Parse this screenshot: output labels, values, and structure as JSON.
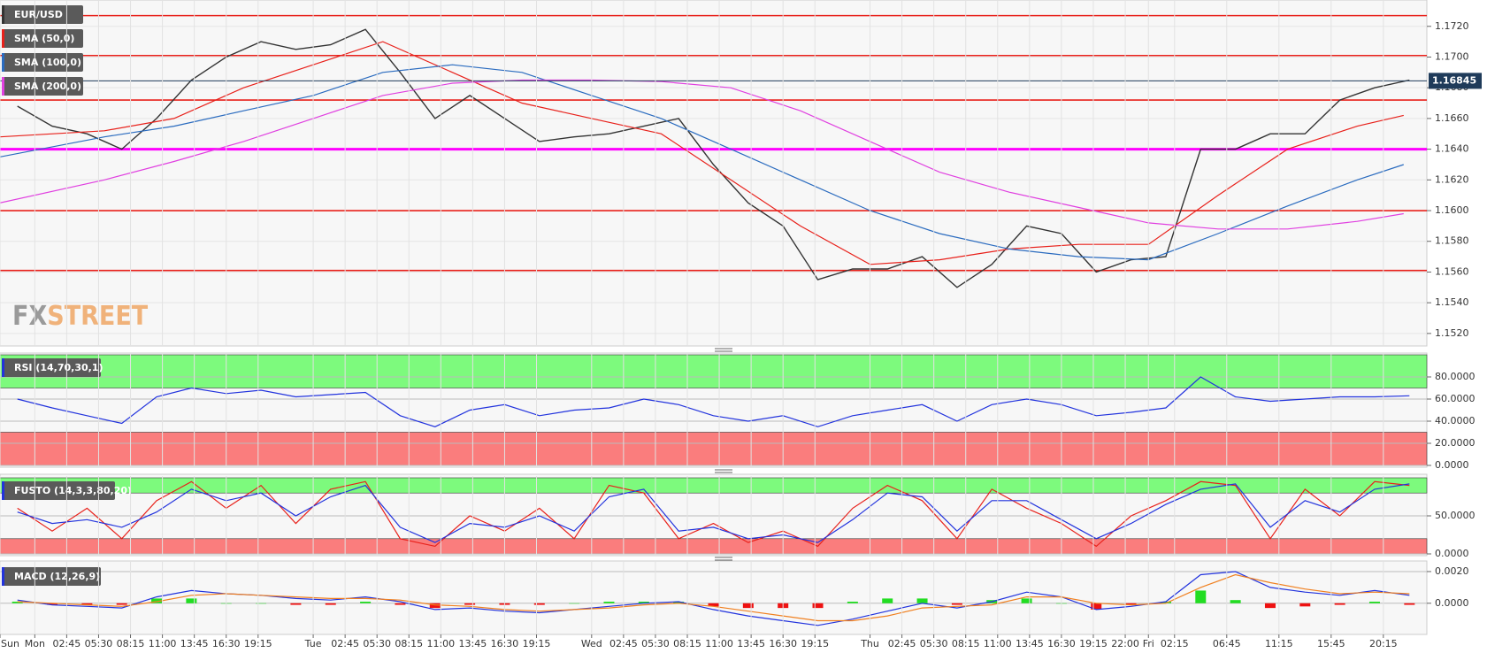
{
  "chart_data": [
    {
      "type": "line",
      "watermark": [
        "FX",
        "STREET"
      ],
      "ylim": [
        1.1513,
        1.1736
      ],
      "yticks": [
        {
          "value": 1.152,
          "label": "1.1520"
        },
        {
          "value": 1.154,
          "label": "1.1540"
        },
        {
          "value": 1.156,
          "label": "1.1560"
        },
        {
          "value": 1.158,
          "label": "1.1580"
        },
        {
          "value": 1.16,
          "label": "1.1600"
        },
        {
          "value": 1.162,
          "label": "1.1620"
        },
        {
          "value": 1.164,
          "label": "1.1640"
        },
        {
          "value": 1.166,
          "label": "1.1660"
        },
        {
          "value": 1.168,
          "label": "1.1680"
        },
        {
          "value": 1.17,
          "label": "1.1700"
        },
        {
          "value": 1.172,
          "label": "1.1720"
        }
      ],
      "xlim": [
        -3,
        120
      ],
      "last_price": 1.16845,
      "hlines": [
        {
          "value": 1.1727,
          "color": "#e8211b"
        },
        {
          "value": 1.1701,
          "color": "#e8211b"
        },
        {
          "value": 1.1672,
          "color": "#e8211b"
        },
        {
          "value": 1.164,
          "color": "#ff00ff"
        },
        {
          "value": 1.16,
          "color": "#e8211b"
        },
        {
          "value": 1.1561,
          "color": "#e8211b"
        }
      ],
      "series": [
        {
          "name": "EUR/USD",
          "color": "#333333",
          "x": [
            -1.5,
            1.5,
            4.5,
            7.5,
            10.5,
            13.5,
            16.5,
            19.5,
            22.5,
            25.5,
            28.5,
            31.5,
            34.5,
            37.5,
            40.5,
            43.5,
            46.5,
            49.5,
            52.5,
            55.5,
            58.5,
            61.5,
            64.5,
            67.5,
            70.5,
            73.5,
            76.5,
            79.5,
            82.5,
            85.5,
            88.5,
            91.5,
            94.5,
            97.5,
            100.5,
            103.5,
            106.5,
            109.5,
            112.5,
            115.5,
            118.5
          ],
          "values": [
            1.1668,
            1.1655,
            1.165,
            1.164,
            1.166,
            1.1685,
            1.17,
            1.171,
            1.1705,
            1.1708,
            1.1718,
            1.169,
            1.166,
            1.1675,
            1.166,
            1.1645,
            1.1648,
            1.165,
            1.1655,
            1.166,
            1.163,
            1.1605,
            1.159,
            1.1555,
            1.1562,
            1.1562,
            1.157,
            1.155,
            1.1565,
            1.159,
            1.1585,
            1.156,
            1.1568,
            1.157,
            1.164,
            1.164,
            1.165,
            1.165,
            1.1672,
            1.168,
            1.1685
          ]
        },
        {
          "name": "SMA (50,0)",
          "color": "#e8211b",
          "x": [
            -3,
            6,
            12,
            18,
            24,
            30,
            36,
            42,
            48,
            54,
            60,
            66,
            72,
            78,
            84,
            90,
            96,
            102,
            108,
            114,
            118
          ],
          "values": [
            1.1648,
            1.1652,
            1.166,
            1.168,
            1.1695,
            1.171,
            1.169,
            1.167,
            1.166,
            1.165,
            1.162,
            1.159,
            1.1565,
            1.1568,
            1.1575,
            1.1578,
            1.1578,
            1.161,
            1.164,
            1.1655,
            1.1662
          ]
        },
        {
          "name": "SMA (100,0)",
          "color": "#2a6bbf",
          "x": [
            -3,
            6,
            12,
            18,
            24,
            30,
            36,
            42,
            48,
            54,
            60,
            66,
            72,
            78,
            84,
            90,
            96,
            102,
            108,
            114,
            118
          ],
          "values": [
            1.1635,
            1.1648,
            1.1655,
            1.1665,
            1.1675,
            1.169,
            1.1695,
            1.169,
            1.1675,
            1.166,
            1.164,
            1.162,
            1.16,
            1.1585,
            1.1575,
            1.157,
            1.1568,
            1.1585,
            1.1603,
            1.162,
            1.163
          ]
        },
        {
          "name": "SMA (200,0)",
          "color": "#e040e0",
          "x": [
            -3,
            6,
            12,
            18,
            24,
            30,
            36,
            42,
            48,
            54,
            60,
            66,
            72,
            78,
            84,
            90,
            96,
            102,
            108,
            114,
            118
          ],
          "values": [
            1.1605,
            1.162,
            1.1632,
            1.1645,
            1.166,
            1.1675,
            1.1683,
            1.1685,
            1.1685,
            1.1684,
            1.168,
            1.1665,
            1.1645,
            1.1625,
            1.1612,
            1.1602,
            1.1592,
            1.1588,
            1.1588,
            1.1593,
            1.1598
          ]
        }
      ]
    },
    {
      "type": "line",
      "label": "RSI (14,70,30,1)",
      "ylim": [
        0,
        100
      ],
      "xlim": [
        -3,
        120
      ],
      "yticks": [
        {
          "value": 0,
          "label": "0.0000"
        },
        {
          "value": 20,
          "label": "20.0000"
        },
        {
          "value": 40,
          "label": "40.0000"
        },
        {
          "value": 60,
          "label": "60.0000"
        },
        {
          "value": 80,
          "label": "80.0000"
        }
      ],
      "bands": [
        {
          "from": 70,
          "to": 100,
          "color": "#7dfa7d"
        },
        {
          "from": 0,
          "to": 30,
          "color": "#fa7d7d"
        }
      ],
      "x": [
        -1.5,
        1.5,
        4.5,
        7.5,
        10.5,
        13.5,
        16.5,
        19.5,
        22.5,
        25.5,
        28.5,
        31.5,
        34.5,
        37.5,
        40.5,
        43.5,
        46.5,
        49.5,
        52.5,
        55.5,
        58.5,
        61.5,
        64.5,
        67.5,
        70.5,
        73.5,
        76.5,
        79.5,
        82.5,
        85.5,
        88.5,
        91.5,
        94.5,
        97.5,
        100.5,
        103.5,
        106.5,
        109.5,
        112.5,
        115.5,
        118.5
      ],
      "series": [
        {
          "color": "#2233dd",
          "values": [
            60,
            52,
            45,
            38,
            62,
            70,
            65,
            68,
            62,
            64,
            66,
            45,
            35,
            50,
            55,
            45,
            50,
            52,
            60,
            55,
            45,
            40,
            45,
            35,
            45,
            50,
            55,
            40,
            55,
            60,
            55,
            45,
            48,
            52,
            80,
            62,
            58,
            60,
            62,
            62,
            63
          ]
        }
      ]
    },
    {
      "type": "line",
      "label": "FUSTO (14,3,3,80,20)",
      "ylim": [
        0,
        100
      ],
      "xlim": [
        -3,
        120
      ],
      "yticks": [
        {
          "value": 0,
          "label": "0.0000"
        },
        {
          "value": 50,
          "label": "50.0000"
        }
      ],
      "bands": [
        {
          "from": 80,
          "to": 100,
          "color": "#7dfa7d"
        },
        {
          "from": 0,
          "to": 20,
          "color": "#fa7d7d"
        }
      ],
      "x": [
        -1.5,
        1.5,
        4.5,
        7.5,
        10.5,
        13.5,
        16.5,
        19.5,
        22.5,
        25.5,
        28.5,
        31.5,
        34.5,
        37.5,
        40.5,
        43.5,
        46.5,
        49.5,
        52.5,
        55.5,
        58.5,
        61.5,
        64.5,
        67.5,
        70.5,
        73.5,
        76.5,
        79.5,
        82.5,
        85.5,
        88.5,
        91.5,
        94.5,
        97.5,
        100.5,
        103.5,
        106.5,
        109.5,
        112.5,
        115.5,
        118.5
      ],
      "series": [
        {
          "color": "#e8211b",
          "values": [
            60,
            30,
            60,
            20,
            70,
            95,
            60,
            90,
            40,
            85,
            95,
            20,
            10,
            50,
            30,
            60,
            20,
            90,
            80,
            20,
            40,
            15,
            30,
            10,
            60,
            90,
            70,
            20,
            85,
            60,
            40,
            10,
            50,
            70,
            95,
            90,
            20,
            85,
            50,
            95,
            90
          ]
        },
        {
          "color": "#2233dd",
          "values": [
            55,
            40,
            45,
            35,
            55,
            85,
            70,
            80,
            50,
            75,
            90,
            35,
            15,
            40,
            35,
            50,
            30,
            75,
            85,
            30,
            35,
            20,
            25,
            15,
            45,
            80,
            75,
            30,
            70,
            70,
            45,
            20,
            40,
            65,
            85,
            92,
            35,
            70,
            55,
            85,
            92
          ]
        }
      ]
    },
    {
      "type": "line",
      "label": "MACD (12,26,9)",
      "ylim": [
        -0.0018,
        0.0025
      ],
      "xlim": [
        -3,
        120
      ],
      "yticks": [
        {
          "value": 0,
          "label": "0.0000"
        },
        {
          "value": 0.002,
          "label": "0.0020"
        }
      ],
      "x": [
        -1.5,
        1.5,
        4.5,
        7.5,
        10.5,
        13.5,
        16.5,
        19.5,
        22.5,
        25.5,
        28.5,
        31.5,
        34.5,
        37.5,
        40.5,
        43.5,
        46.5,
        49.5,
        52.5,
        55.5,
        58.5,
        61.5,
        64.5,
        67.5,
        70.5,
        73.5,
        76.5,
        79.5,
        82.5,
        85.5,
        88.5,
        91.5,
        94.5,
        97.5,
        100.5,
        103.5,
        106.5,
        109.5,
        112.5,
        115.5,
        118.5
      ],
      "xticks": [
        {
          "value": -3,
          "label": "Sun"
        },
        {
          "value": 0,
          "label": "Mon"
        },
        {
          "value": 2.75,
          "label": "02:45"
        },
        {
          "value": 5.5,
          "label": "05:30"
        },
        {
          "value": 8.25,
          "label": "08:15"
        },
        {
          "value": 11,
          "label": "11:00"
        },
        {
          "value": 13.75,
          "label": "13:45"
        },
        {
          "value": 16.5,
          "label": "16:30"
        },
        {
          "value": 19.25,
          "label": "19:15"
        },
        {
          "value": 24,
          "label": "Tue"
        },
        {
          "value": 26.75,
          "label": "02:45"
        },
        {
          "value": 29.5,
          "label": "05:30"
        },
        {
          "value": 32.25,
          "label": "08:15"
        },
        {
          "value": 35,
          "label": "11:00"
        },
        {
          "value": 37.75,
          "label": "13:45"
        },
        {
          "value": 40.5,
          "label": "16:30"
        },
        {
          "value": 43.25,
          "label": "19:15"
        },
        {
          "value": 48,
          "label": "Wed"
        },
        {
          "value": 50.75,
          "label": "02:45"
        },
        {
          "value": 53.5,
          "label": "05:30"
        },
        {
          "value": 56.25,
          "label": "08:15"
        },
        {
          "value": 59,
          "label": "11:00"
        },
        {
          "value": 61.75,
          "label": "13:45"
        },
        {
          "value": 64.5,
          "label": "16:30"
        },
        {
          "value": 67.25,
          "label": "19:15"
        },
        {
          "value": 72,
          "label": "Thu"
        },
        {
          "value": 74.75,
          "label": "02:45"
        },
        {
          "value": 77.5,
          "label": "05:30"
        },
        {
          "value": 80.25,
          "label": "08:15"
        },
        {
          "value": 83,
          "label": "11:00"
        },
        {
          "value": 85.75,
          "label": "13:45"
        },
        {
          "value": 88.5,
          "label": "16:30"
        },
        {
          "value": 91.25,
          "label": "19:15"
        },
        {
          "value": 94,
          "label": "22:00"
        },
        {
          "value": 96,
          "label": "Fri"
        },
        {
          "value": 98.25,
          "label": "02:15"
        },
        {
          "value": 102.75,
          "label": "06:45"
        },
        {
          "value": 107.25,
          "label": "11:15"
        },
        {
          "value": 111.75,
          "label": "15:45"
        },
        {
          "value": 116.25,
          "label": "20:15"
        }
      ],
      "series": [
        {
          "type": "bar",
          "color": "#22dd22",
          "negative_color": "#ee1111",
          "values": [
            0.0001,
            -0.0001,
            -0.0001,
            -0.0001,
            0.0003,
            0.0003,
            0,
            0,
            -0.0001,
            -0.0001,
            0.0001,
            -0.0001,
            -0.0003,
            -0.0001,
            -0.0001,
            -0.0001,
            0,
            0.0001,
            0.0001,
            0.0001,
            -0.0002,
            -0.0003,
            -0.0003,
            -0.0003,
            0.0001,
            0.0003,
            0.0003,
            -0.0001,
            0.0002,
            0.0003,
            0,
            -0.0004,
            -0.0001,
            0.0001,
            0.0008,
            0.0002,
            -0.0003,
            -0.0002,
            -0.0001,
            0.0001,
            -0.0001
          ]
        },
        {
          "color": "#2233dd",
          "values": [
            0.0002,
            -0.0001,
            -0.0002,
            -0.0003,
            0.0004,
            0.0008,
            0.0006,
            0.0005,
            0.0003,
            0.0002,
            0.0004,
            0.0001,
            -0.0004,
            -0.0003,
            -0.0005,
            -0.0006,
            -0.0004,
            -0.0002,
            0,
            0.0001,
            -0.0004,
            -0.0008,
            -0.0011,
            -0.0014,
            -0.001,
            -0.0005,
            0,
            -0.0003,
            0.0001,
            0.0007,
            0.0004,
            -0.0004,
            -0.0002,
            0.0001,
            0.0018,
            0.002,
            0.001,
            0.0007,
            0.0005,
            0.0008,
            0.0005
          ]
        },
        {
          "color": "#f08020",
          "values": [
            0.0001,
            0,
            -0.0001,
            -0.0002,
            0.0001,
            0.0005,
            0.0006,
            0.0005,
            0.0004,
            0.0003,
            0.0003,
            0.0002,
            -0.0001,
            -0.0002,
            -0.0004,
            -0.0005,
            -0.0004,
            -0.0003,
            -0.0001,
            0,
            -0.0002,
            -0.0005,
            -0.0008,
            -0.0011,
            -0.0011,
            -0.0008,
            -0.0003,
            -0.0002,
            -0.0001,
            0.0004,
            0.0004,
            0,
            -0.0001,
            0,
            0.001,
            0.0018,
            0.0013,
            0.0009,
            0.0006,
            0.0007,
            0.0006
          ]
        }
      ]
    }
  ]
}
